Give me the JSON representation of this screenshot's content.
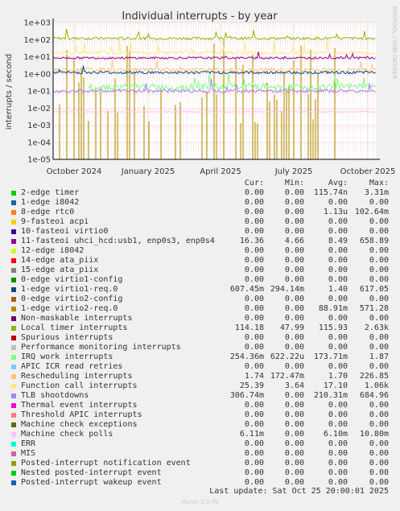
{
  "chart_data": {
    "type": "line",
    "title": "Individual interrupts - by year",
    "ylabel": "interrupts / second",
    "yscale": "log",
    "ylim": [
      1e-05,
      1000
    ],
    "yticks": [
      "1e-05",
      "1e-04",
      "1e-03",
      "1e-02",
      "1e-01",
      "1e+00",
      "1e+01",
      "1e+02",
      "1e+03"
    ],
    "xticks": [
      "October 2024",
      "January 2025",
      "April 2025",
      "July 2025",
      "October 2025"
    ],
    "grid": true,
    "watermark": "RRDTOOL / TOBI OETIKER",
    "series": [
      {
        "name": "2-edge timer",
        "color": "#00cc00",
        "cur": "0.00",
        "min": "0.00",
        "avg": "115.74n",
        "max": "3.31m"
      },
      {
        "name": "1-edge i8042",
        "color": "#0066b3",
        "cur": "0.00",
        "min": "0.00",
        "avg": "0.00",
        "max": "0.00"
      },
      {
        "name": "8-edge rtc0",
        "color": "#ff8000",
        "cur": "0.00",
        "min": "0.00",
        "avg": "1.13u",
        "max": "102.64m"
      },
      {
        "name": "9-fasteoi acpi",
        "color": "#ffcc00",
        "cur": "0.00",
        "min": "0.00",
        "avg": "0.00",
        "max": "0.00"
      },
      {
        "name": "10-fasteoi virtio0",
        "color": "#330099",
        "cur": "0.00",
        "min": "0.00",
        "avg": "0.00",
        "max": "0.00"
      },
      {
        "name": "11-fasteoi uhci_hcd:usb1, enp0s3, enp0s4",
        "color": "#990099",
        "cur": "16.36",
        "min": "4.66",
        "avg": "8.49",
        "max": "658.89"
      },
      {
        "name": "12-edge i8042",
        "color": "#ccff00",
        "cur": "0.00",
        "min": "0.00",
        "avg": "0.00",
        "max": "0.00"
      },
      {
        "name": "14-edge ata_piix",
        "color": "#ff0000",
        "cur": "0.00",
        "min": "0.00",
        "avg": "0.00",
        "max": "0.00"
      },
      {
        "name": "15-edge ata_piix",
        "color": "#808080",
        "cur": "0.00",
        "min": "0.00",
        "avg": "0.00",
        "max": "0.00"
      },
      {
        "name": "0-edge virtio1-config",
        "color": "#008f00",
        "cur": "0.00",
        "min": "0.00",
        "avg": "0.00",
        "max": "0.00"
      },
      {
        "name": "1-edge virtio1-req.0",
        "color": "#00487d",
        "cur": "607.45m",
        "min": "294.14m",
        "avg": "1.40",
        "max": "617.05"
      },
      {
        "name": "0-edge virtio2-config",
        "color": "#b35a00",
        "cur": "0.00",
        "min": "0.00",
        "avg": "0.00",
        "max": "0.00"
      },
      {
        "name": "1-edge virtio2-req.0",
        "color": "#b38f00",
        "cur": "0.00",
        "min": "0.00",
        "avg": "88.91m",
        "max": "571.28"
      },
      {
        "name": "Non-maskable interrupts",
        "color": "#6b006b",
        "cur": "0.00",
        "min": "0.00",
        "avg": "0.00",
        "max": "0.00"
      },
      {
        "name": "Local timer interrupts",
        "color": "#8fb300",
        "cur": "114.18",
        "min": "47.99",
        "avg": "115.93",
        "max": "2.63k"
      },
      {
        "name": "Spurious interrupts",
        "color": "#b30000",
        "cur": "0.00",
        "min": "0.00",
        "avg": "0.00",
        "max": "0.00"
      },
      {
        "name": "Performance monitoring interrupts",
        "color": "#bebebe",
        "cur": "0.00",
        "min": "0.00",
        "avg": "0.00",
        "max": "0.00"
      },
      {
        "name": "IRQ work interrupts",
        "color": "#80ff80",
        "cur": "254.36m",
        "min": "622.22u",
        "avg": "173.71m",
        "max": "1.87"
      },
      {
        "name": "APIC ICR read retries",
        "color": "#80c9ff",
        "cur": "0.00",
        "min": "0.00",
        "avg": "0.00",
        "max": "0.00"
      },
      {
        "name": "Rescheduling interrupts",
        "color": "#ffc080",
        "cur": "1.74",
        "min": "172.47m",
        "avg": "1.70",
        "max": "226.85"
      },
      {
        "name": "Function call interrupts",
        "color": "#ffe680",
        "cur": "25.39",
        "min": "3.64",
        "avg": "17.10",
        "max": "1.06k"
      },
      {
        "name": "TLB shootdowns",
        "color": "#aa80ff",
        "cur": "306.74m",
        "min": "0.00",
        "avg": "210.31m",
        "max": "684.96"
      },
      {
        "name": "Thermal event interrupts",
        "color": "#ee00cc",
        "cur": "0.00",
        "min": "0.00",
        "avg": "0.00",
        "max": "0.00"
      },
      {
        "name": "Threshold APIC interrupts",
        "color": "#ff8080",
        "cur": "0.00",
        "min": "0.00",
        "avg": "0.00",
        "max": "0.00"
      },
      {
        "name": "Machine check exceptions",
        "color": "#666600",
        "cur": "0.00",
        "min": "0.00",
        "avg": "0.00",
        "max": "0.00"
      },
      {
        "name": "Machine check polls",
        "color": "#ffbfff",
        "cur": "6.11m",
        "min": "0.00",
        "avg": "6.10m",
        "max": "10.80m"
      },
      {
        "name": "ERR",
        "color": "#00ffcc",
        "cur": "0.00",
        "min": "0.00",
        "avg": "0.00",
        "max": "0.00"
      },
      {
        "name": "MIS",
        "color": "#cc6699",
        "cur": "0.00",
        "min": "0.00",
        "avg": "0.00",
        "max": "0.00"
      },
      {
        "name": "Posted-interrupt notification event",
        "color": "#999900",
        "cur": "0.00",
        "min": "0.00",
        "avg": "0.00",
        "max": "0.00"
      },
      {
        "name": "Nested posted-interrupt event",
        "color": "#00cc00",
        "cur": "0.00",
        "min": "0.00",
        "avg": "0.00",
        "max": "0.00"
      },
      {
        "name": "Posted-interrupt wakeup event",
        "color": "#0066b3",
        "cur": "0.00",
        "min": "0.00",
        "avg": "0.00",
        "max": "0.00"
      }
    ]
  },
  "legend_headers": {
    "cur": "Cur:",
    "min": "Min:",
    "avg": "Avg:",
    "max": "Max:"
  },
  "last_update": "Last update: Sat Oct 25 20:00:01 2025",
  "munin_version": "Munin 2.0.76"
}
